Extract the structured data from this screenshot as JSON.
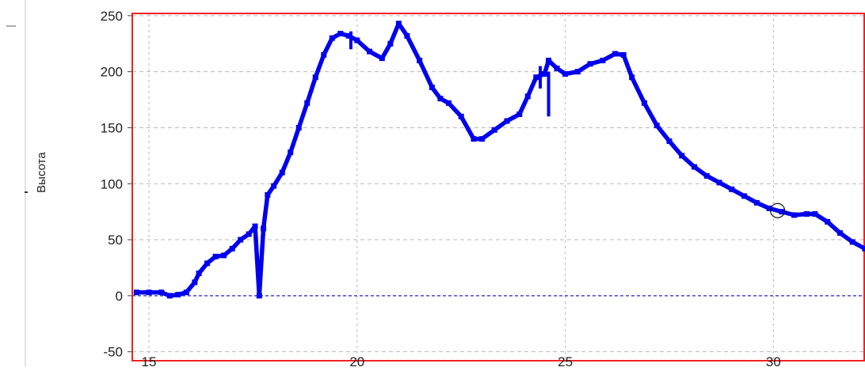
{
  "chart_data": {
    "type": "line",
    "ylabel": "Высота",
    "xlabel": "",
    "title": "",
    "xlim": [
      14.6,
      32.2
    ],
    "ylim": [
      -58,
      252
    ],
    "x_ticks": [
      15,
      20,
      25,
      30
    ],
    "y_ticks": [
      -50,
      0,
      50,
      100,
      150,
      200,
      250
    ],
    "grid": true,
    "colors": {
      "series": "#0000ee",
      "frame": "#ee2222",
      "grid": "#b8b8b8",
      "zero_line": "#2222cc",
      "spike_line": "#111111"
    },
    "series": [
      {
        "x": [
          14.7,
          15.0,
          15.3,
          15.5,
          15.7,
          15.9,
          16.1,
          16.2,
          16.4,
          16.6,
          16.8,
          17.0,
          17.2,
          17.4,
          17.55,
          17.65,
          17.75,
          17.85,
          18.0,
          18.2,
          18.4,
          18.6,
          18.8,
          19.0,
          19.2,
          19.4,
          19.6,
          19.8,
          20.0,
          20.3,
          20.6,
          20.8,
          21.0,
          21.2,
          21.5,
          21.8,
          22.0,
          22.2,
          22.5,
          22.8,
          23.0,
          23.3,
          23.6,
          23.9,
          24.1,
          24.3,
          24.5,
          24.6,
          24.8,
          25.0,
          25.3,
          25.6,
          25.9,
          26.2,
          26.4,
          26.6,
          26.9,
          27.2,
          27.5,
          27.8,
          28.1,
          28.4,
          28.7,
          29.0,
          29.3,
          29.6,
          29.9,
          30.2,
          30.5,
          30.8,
          31.0,
          31.3,
          31.6,
          31.9,
          32.2
        ],
        "y": [
          3,
          3,
          3,
          0,
          1,
          3,
          12,
          20,
          29,
          35,
          36,
          42,
          50,
          55,
          62,
          0,
          60,
          90,
          98,
          110,
          128,
          150,
          172,
          195,
          215,
          230,
          234,
          232,
          228,
          218,
          212,
          225,
          243,
          232,
          210,
          186,
          176,
          172,
          160,
          140,
          140,
          148,
          156,
          162,
          178,
          195,
          198,
          210,
          203,
          198,
          200,
          207,
          210,
          216,
          215,
          195,
          172,
          152,
          138,
          125,
          115,
          107,
          101,
          95,
          89,
          83,
          78,
          75,
          72,
          73,
          73,
          66,
          56,
          48,
          42
        ]
      }
    ]
  }
}
